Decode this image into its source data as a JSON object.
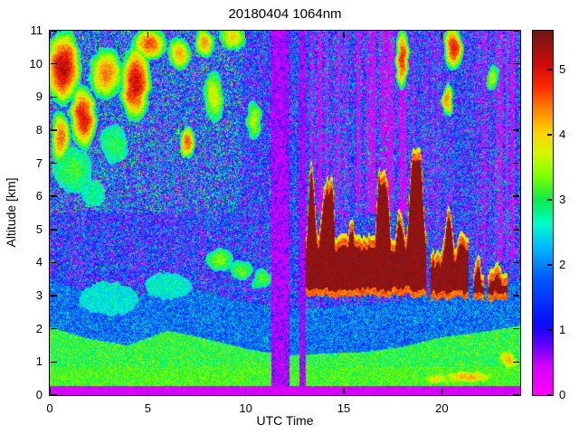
{
  "chart_data": {
    "type": "heatmap",
    "title": "20180404 1064nm",
    "x_axis": {
      "label": "UTC Time",
      "range": [
        0,
        24
      ],
      "ticks": [
        {
          "v": 0,
          "label": "0"
        },
        {
          "v": 5,
          "label": "5"
        },
        {
          "v": 10,
          "label": "10"
        },
        {
          "v": 15,
          "label": "15"
        },
        {
          "v": 20,
          "label": "20"
        }
      ]
    },
    "y_axis": {
      "label": "Altitude [km]",
      "range": [
        0,
        11
      ],
      "ticks": [
        {
          "v": 0,
          "label": "0"
        },
        {
          "v": 1,
          "label": "1"
        },
        {
          "v": 2,
          "label": "2"
        },
        {
          "v": 3,
          "label": "3"
        },
        {
          "v": 4,
          "label": "4"
        },
        {
          "v": 5,
          "label": "5"
        },
        {
          "v": 6,
          "label": "6"
        },
        {
          "v": 7,
          "label": "7"
        },
        {
          "v": 8,
          "label": "8"
        },
        {
          "v": 9,
          "label": "9"
        },
        {
          "v": 10,
          "label": "10"
        },
        {
          "v": 11,
          "label": "11"
        }
      ]
    },
    "colorbar": {
      "range": [
        0,
        5.6
      ],
      "ticks": [
        {
          "v": 0,
          "label": "0"
        },
        {
          "v": 1,
          "label": "1"
        },
        {
          "v": 2,
          "label": "2"
        },
        {
          "v": 3,
          "label": "3"
        },
        {
          "v": 4,
          "label": "4"
        },
        {
          "v": 5,
          "label": "5"
        }
      ]
    },
    "colormap_stops": [
      [
        0.0,
        255,
        0,
        255
      ],
      [
        0.45,
        215,
        0,
        255
      ],
      [
        0.8,
        90,
        0,
        255
      ],
      [
        1.1,
        10,
        10,
        255
      ],
      [
        1.8,
        0,
        90,
        255
      ],
      [
        2.3,
        0,
        190,
        255
      ],
      [
        2.65,
        0,
        255,
        200
      ],
      [
        3.0,
        10,
        235,
        80
      ],
      [
        3.35,
        120,
        255,
        0
      ],
      [
        3.7,
        210,
        250,
        0
      ],
      [
        4.05,
        255,
        210,
        0
      ],
      [
        4.4,
        255,
        130,
        0
      ],
      [
        4.75,
        255,
        40,
        0
      ],
      [
        5.1,
        205,
        10,
        10
      ],
      [
        5.6,
        110,
        25,
        25
      ]
    ],
    "features": {
      "surface_strip_km": 0.28,
      "boundary_layer": {
        "t": [
          0,
          2,
          4,
          6,
          8,
          10,
          12,
          14,
          16,
          18,
          20,
          22,
          24
        ],
        "top_km": [
          2.05,
          1.7,
          1.5,
          1.95,
          1.7,
          1.4,
          1.2,
          1.25,
          1.3,
          1.45,
          1.75,
          1.9,
          2.1
        ]
      },
      "cyan_band_thickness_km": 1.4,
      "gap_columns": [
        {
          "t0": 11.3,
          "t1": 12.25
        },
        {
          "t0": 12.75,
          "t1": 13.05
        }
      ],
      "dense_cloud_layers": [
        {
          "t0": 13.05,
          "t1": 19.2,
          "base_km": 3.05,
          "top_km": 4.65,
          "spike_km": 1.8,
          "broken": false
        },
        {
          "t0": 19.45,
          "t1": 21.35,
          "base_km": 2.95,
          "top_km": 4.2,
          "spike_km": 1.0,
          "broken": false
        },
        {
          "t0": 21.6,
          "t1": 23.35,
          "base_km": 2.9,
          "top_km": 3.5,
          "spike_km": 0.5,
          "broken": true
        }
      ],
      "cirrus_blobs": [
        {
          "t": 0.7,
          "z": 9.9,
          "rt": 0.95,
          "rz": 1.15,
          "v": 5.2
        },
        {
          "t": 0.5,
          "z": 7.8,
          "rt": 0.5,
          "rz": 0.8,
          "v": 4.5
        },
        {
          "t": 1.7,
          "z": 8.4,
          "rt": 0.7,
          "rz": 1.0,
          "v": 5.0
        },
        {
          "t": 2.9,
          "z": 9.7,
          "rt": 0.9,
          "rz": 0.8,
          "v": 4.4
        },
        {
          "t": 4.35,
          "z": 9.4,
          "rt": 0.8,
          "rz": 1.2,
          "v": 5.1
        },
        {
          "t": 5.1,
          "z": 10.6,
          "rt": 0.9,
          "rz": 0.5,
          "v": 4.6
        },
        {
          "t": 6.6,
          "z": 10.3,
          "rt": 0.6,
          "rz": 0.5,
          "v": 4.2
        },
        {
          "t": 7.0,
          "z": 7.6,
          "rt": 0.4,
          "rz": 0.5,
          "v": 4.6
        },
        {
          "t": 7.9,
          "z": 10.6,
          "rt": 0.5,
          "rz": 0.45,
          "v": 4.3
        },
        {
          "t": 8.4,
          "z": 9.0,
          "rt": 0.5,
          "rz": 0.8,
          "v": 3.8
        },
        {
          "t": 9.4,
          "z": 10.8,
          "rt": 0.7,
          "rz": 0.4,
          "v": 4.0
        },
        {
          "t": 10.4,
          "z": 8.3,
          "rt": 0.4,
          "rz": 0.6,
          "v": 3.6
        },
        {
          "t": 18.0,
          "z": 10.2,
          "rt": 0.35,
          "rz": 0.95,
          "v": 4.8
        },
        {
          "t": 20.6,
          "z": 10.5,
          "rt": 0.5,
          "rz": 0.7,
          "v": 4.9
        },
        {
          "t": 20.3,
          "z": 8.9,
          "rt": 0.3,
          "rz": 0.5,
          "v": 4.4
        },
        {
          "t": 22.6,
          "z": 9.6,
          "rt": 0.3,
          "rz": 0.4,
          "v": 3.6
        }
      ],
      "midlevel_wisps": [
        {
          "t": 8.7,
          "z": 4.1,
          "rt": 0.7,
          "rz": 0.35,
          "v": 3.4
        },
        {
          "t": 9.8,
          "z": 3.8,
          "rt": 0.6,
          "rz": 0.3,
          "v": 3.3
        },
        {
          "t": 10.8,
          "z": 3.5,
          "rt": 0.5,
          "rz": 0.3,
          "v": 3.2
        },
        {
          "t": 6.0,
          "z": 3.3,
          "rt": 1.2,
          "rz": 0.4,
          "v": 2.6
        },
        {
          "t": 3.0,
          "z": 2.9,
          "rt": 1.5,
          "rz": 0.5,
          "v": 2.5
        },
        {
          "t": 1.2,
          "z": 6.8,
          "rt": 1.0,
          "rz": 0.7,
          "v": 3.1
        },
        {
          "t": 3.3,
          "z": 7.6,
          "rt": 0.7,
          "rz": 0.6,
          "v": 3.0
        },
        {
          "t": 2.2,
          "z": 6.1,
          "rt": 0.6,
          "rz": 0.4,
          "v": 2.8
        }
      ],
      "low_wisps": [
        {
          "t": 21.3,
          "z": 0.55,
          "rt": 1.6,
          "rz": 0.22,
          "v": 4.2
        },
        {
          "t": 23.4,
          "z": 1.05,
          "rt": 0.6,
          "rz": 0.35,
          "v": 4.1
        },
        {
          "t": 19.8,
          "z": 0.5,
          "rt": 0.8,
          "rz": 0.2,
          "v": 3.9
        }
      ],
      "magenta_streak_zones": [
        {
          "t0": 13.3,
          "t1": 18.6,
          "zmin": 5.5
        },
        {
          "t0": 19.0,
          "t1": 20.4,
          "zmin": 4.5
        },
        {
          "t0": 21.8,
          "t1": 23.7,
          "zmin": 4.0
        }
      ]
    }
  }
}
